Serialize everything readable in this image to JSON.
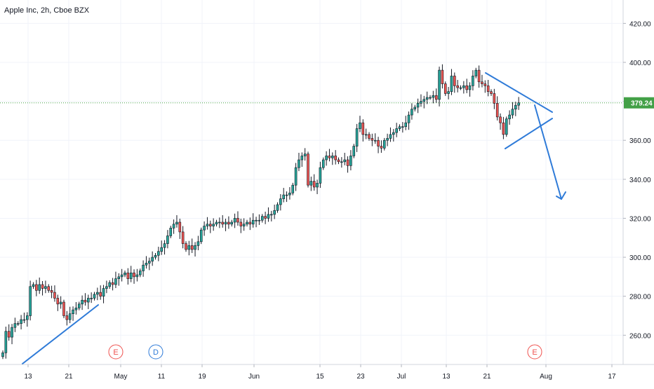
{
  "chart_data": {
    "type": "candlestick",
    "title": "Apple Inc, 2h, Cboe BZX",
    "ylim": [
      245,
      432
    ],
    "y_ticks": [
      "260.00",
      "280.00",
      "300.00",
      "320.00",
      "340.00",
      "360.00",
      "380.00",
      "400.00",
      "420.00"
    ],
    "y_tick_values": [
      260,
      280,
      300,
      320,
      340,
      360,
      380,
      400,
      420
    ],
    "x_tick_labels": [
      "13",
      "21",
      "May",
      "11",
      "19",
      "Jun",
      "15",
      "23",
      "Jul",
      "13",
      "21",
      "Aug",
      "17"
    ],
    "current_price": 379.24,
    "current_price_label": "379.24",
    "grid": true,
    "colors": {
      "up": "#26a69a",
      "down": "#ef5350",
      "candle_body": "#131722",
      "drawing": "#2f7bd8",
      "price_line": "#43a047",
      "grid": "#f0f3fa"
    },
    "markers": [
      {
        "label": "E",
        "session": 71,
        "type": "earnings",
        "color": "#ef5350"
      },
      {
        "label": "D",
        "session": 82,
        "type": "dividend",
        "color": "#2f7bd8"
      },
      {
        "label": "E",
        "session": 169,
        "type": "earnings",
        "color": "#ef5350"
      }
    ],
    "sessions": [
      {
        "x": 0,
        "close": 251
      },
      {
        "x": 1,
        "close": 262
      },
      {
        "x": 2,
        "close": 259
      },
      {
        "x": 3,
        "close": 264
      },
      {
        "x": 4,
        "close": 266
      },
      {
        "x": 5,
        "close": 266
      },
      {
        "x": 6,
        "close": 268
      },
      {
        "x": 7,
        "close": 268
      },
      {
        "x": 8,
        "close": 270
      },
      {
        "x": 9,
        "close": 285
      },
      {
        "x": 10,
        "close": 286
      },
      {
        "x": 11,
        "close": 283
      },
      {
        "x": 12,
        "close": 286
      },
      {
        "x": 13,
        "close": 284
      },
      {
        "x": 14,
        "close": 285
      },
      {
        "x": 15,
        "close": 283
      },
      {
        "x": 16,
        "close": 282
      },
      {
        "x": 17,
        "close": 279
      },
      {
        "x": 18,
        "close": 276
      },
      {
        "x": 19,
        "close": 277
      },
      {
        "x": 20,
        "close": 270
      },
      {
        "x": 21,
        "close": 268
      },
      {
        "x": 22,
        "close": 271
      },
      {
        "x": 23,
        "close": 273
      },
      {
        "x": 24,
        "close": 274
      },
      {
        "x": 25,
        "close": 276
      },
      {
        "x": 26,
        "close": 278
      },
      {
        "x": 27,
        "close": 277
      },
      {
        "x": 28,
        "close": 279
      },
      {
        "x": 29,
        "close": 279
      },
      {
        "x": 30,
        "close": 281
      },
      {
        "x": 31,
        "close": 282
      },
      {
        "x": 32,
        "close": 280
      },
      {
        "x": 33,
        "close": 284
      },
      {
        "x": 34,
        "close": 285
      },
      {
        "x": 35,
        "close": 287
      },
      {
        "x": 36,
        "close": 286
      },
      {
        "x": 37,
        "close": 289
      },
      {
        "x": 38,
        "close": 290
      },
      {
        "x": 39,
        "close": 291
      },
      {
        "x": 40,
        "close": 292
      },
      {
        "x": 41,
        "close": 289
      },
      {
        "x": 42,
        "close": 292
      },
      {
        "x": 43,
        "close": 290
      },
      {
        "x": 44,
        "close": 291
      },
      {
        "x": 45,
        "close": 293
      },
      {
        "x": 46,
        "close": 296
      },
      {
        "x": 47,
        "close": 297
      },
      {
        "x": 48,
        "close": 298
      },
      {
        "x": 49,
        "close": 300
      },
      {
        "x": 50,
        "close": 301
      },
      {
        "x": 51,
        "close": 303
      },
      {
        "x": 52,
        "close": 305
      },
      {
        "x": 53,
        "close": 307
      },
      {
        "x": 54,
        "close": 311
      },
      {
        "x": 55,
        "close": 315
      },
      {
        "x": 56,
        "close": 317
      },
      {
        "x": 57,
        "close": 318
      },
      {
        "x": 58,
        "close": 313
      },
      {
        "x": 59,
        "close": 307
      },
      {
        "x": 60,
        "close": 304
      },
      {
        "x": 61,
        "close": 306
      },
      {
        "x": 62,
        "close": 304
      },
      {
        "x": 63,
        "close": 306
      },
      {
        "x": 64,
        "close": 308
      },
      {
        "x": 65,
        "close": 314
      },
      {
        "x": 66,
        "close": 316
      },
      {
        "x": 67,
        "close": 317
      },
      {
        "x": 68,
        "close": 316
      },
      {
        "x": 69,
        "close": 317
      },
      {
        "x": 70,
        "close": 318
      },
      {
        "x": 71,
        "close": 318
      },
      {
        "x": 72,
        "close": 317
      },
      {
        "x": 73,
        "close": 318
      },
      {
        "x": 74,
        "close": 317
      },
      {
        "x": 75,
        "close": 318
      },
      {
        "x": 76,
        "close": 320
      },
      {
        "x": 77,
        "close": 318
      },
      {
        "x": 78,
        "close": 316
      },
      {
        "x": 79,
        "close": 317
      },
      {
        "x": 80,
        "close": 318
      },
      {
        "x": 81,
        "close": 317
      },
      {
        "x": 82,
        "close": 319
      },
      {
        "x": 83,
        "close": 319
      },
      {
        "x": 84,
        "close": 319
      },
      {
        "x": 85,
        "close": 321
      },
      {
        "x": 86,
        "close": 320
      },
      {
        "x": 87,
        "close": 322
      },
      {
        "x": 88,
        "close": 322
      },
      {
        "x": 89,
        "close": 324
      },
      {
        "x": 90,
        "close": 327
      },
      {
        "x": 91,
        "close": 330
      },
      {
        "x": 92,
        "close": 332
      },
      {
        "x": 93,
        "close": 332
      },
      {
        "x": 94,
        "close": 333
      },
      {
        "x": 95,
        "close": 337
      },
      {
        "x": 96,
        "close": 346
      },
      {
        "x": 97,
        "close": 350
      },
      {
        "x": 98,
        "close": 352
      },
      {
        "x": 99,
        "close": 353
      },
      {
        "x": 100,
        "close": 337
      },
      {
        "x": 101,
        "close": 339
      },
      {
        "x": 102,
        "close": 336
      },
      {
        "x": 103,
        "close": 338
      },
      {
        "x": 104,
        "close": 346
      },
      {
        "x": 105,
        "close": 350
      },
      {
        "x": 106,
        "close": 352
      },
      {
        "x": 107,
        "close": 351
      },
      {
        "x": 108,
        "close": 352
      },
      {
        "x": 109,
        "close": 350
      },
      {
        "x": 110,
        "close": 349
      },
      {
        "x": 111,
        "close": 349
      },
      {
        "x": 112,
        "close": 350
      },
      {
        "x": 113,
        "close": 347
      },
      {
        "x": 114,
        "close": 352
      },
      {
        "x": 115,
        "close": 357
      },
      {
        "x": 116,
        "close": 366
      },
      {
        "x": 117,
        "close": 369
      },
      {
        "x": 118,
        "close": 363
      },
      {
        "x": 119,
        "close": 363
      },
      {
        "x": 120,
        "close": 361
      },
      {
        "x": 121,
        "close": 360
      },
      {
        "x": 122,
        "close": 360
      },
      {
        "x": 123,
        "close": 357
      },
      {
        "x": 124,
        "close": 356
      },
      {
        "x": 125,
        "close": 360
      },
      {
        "x": 126,
        "close": 361
      },
      {
        "x": 127,
        "close": 363
      },
      {
        "x": 128,
        "close": 364
      },
      {
        "x": 129,
        "close": 366
      },
      {
        "x": 130,
        "close": 367
      },
      {
        "x": 131,
        "close": 367
      },
      {
        "x": 132,
        "close": 369
      },
      {
        "x": 133,
        "close": 373
      },
      {
        "x": 134,
        "close": 376
      },
      {
        "x": 135,
        "close": 377
      },
      {
        "x": 136,
        "close": 379
      },
      {
        "x": 137,
        "close": 380
      },
      {
        "x": 138,
        "close": 381
      },
      {
        "x": 139,
        "close": 382
      },
      {
        "x": 140,
        "close": 382
      },
      {
        "x": 141,
        "close": 383
      },
      {
        "x": 142,
        "close": 381
      },
      {
        "x": 143,
        "close": 396
      },
      {
        "x": 144,
        "close": 389
      },
      {
        "x": 145,
        "close": 384
      },
      {
        "x": 146,
        "close": 385
      },
      {
        "x": 147,
        "close": 393
      },
      {
        "x": 148,
        "close": 388
      },
      {
        "x": 149,
        "close": 387
      },
      {
        "x": 150,
        "close": 387
      },
      {
        "x": 151,
        "close": 388
      },
      {
        "x": 152,
        "close": 386
      },
      {
        "x": 153,
        "close": 388
      },
      {
        "x": 154,
        "close": 393
      },
      {
        "x": 155,
        "close": 396
      },
      {
        "x": 156,
        "close": 390
      },
      {
        "x": 157,
        "close": 389
      },
      {
        "x": 158,
        "close": 388
      },
      {
        "x": 159,
        "close": 385
      },
      {
        "x": 160,
        "close": 384
      },
      {
        "x": 161,
        "close": 379
      },
      {
        "x": 162,
        "close": 372
      },
      {
        "x": 163,
        "close": 369
      },
      {
        "x": 164,
        "close": 363
      },
      {
        "x": 165,
        "close": 371
      },
      {
        "x": 166,
        "close": 373
      },
      {
        "x": 167,
        "close": 376
      },
      {
        "x": 168,
        "close": 378
      },
      {
        "x": 169,
        "close": 379.24
      }
    ]
  }
}
